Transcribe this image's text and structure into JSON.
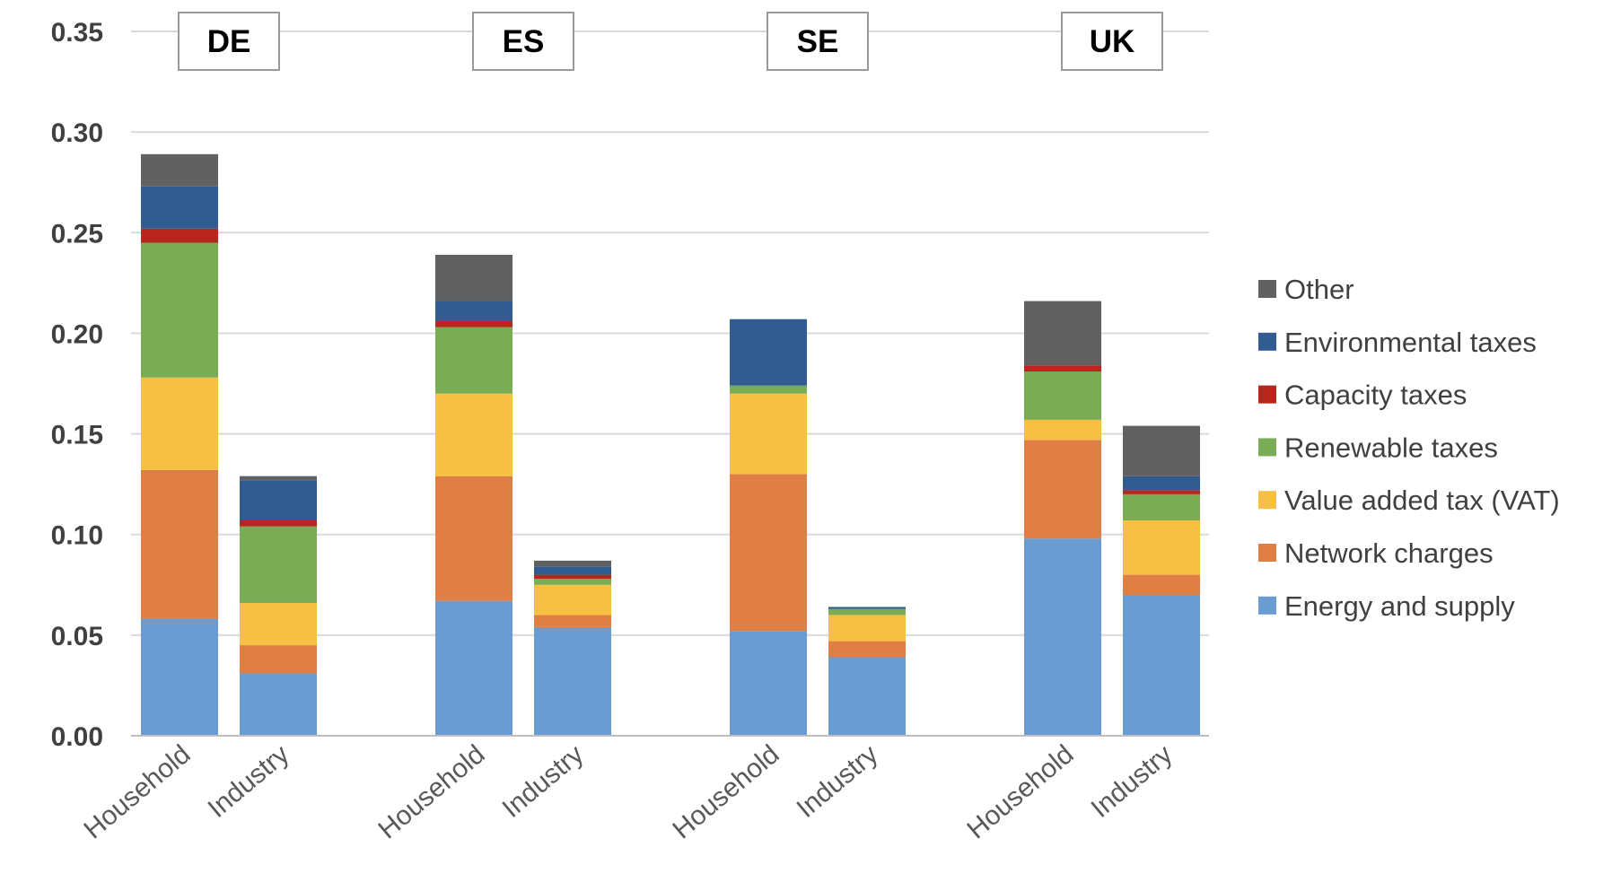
{
  "chart_data": {
    "type": "bar",
    "stacked": true,
    "groups": [
      "DE",
      "ES",
      "SE",
      "UK"
    ],
    "categories": [
      "Household",
      "Industry"
    ],
    "ylim": [
      0,
      0.35
    ],
    "yticks": [
      "0.00",
      "0.05",
      "0.10",
      "0.15",
      "0.20",
      "0.25",
      "0.30",
      "0.35"
    ],
    "grid": true,
    "legend_position": "right",
    "series": [
      {
        "name": "Energy and supply",
        "color": "#6A9BD1",
        "values": {
          "DE": [
            0.058,
            0.031
          ],
          "ES": [
            0.067,
            0.054
          ],
          "SE": [
            0.052,
            0.039
          ],
          "UK": [
            0.098,
            0.07
          ]
        }
      },
      {
        "name": "Network charges",
        "color": "#E07F45",
        "values": {
          "DE": [
            0.074,
            0.014
          ],
          "ES": [
            0.062,
            0.006
          ],
          "SE": [
            0.078,
            0.008
          ],
          "UK": [
            0.049,
            0.01
          ]
        }
      },
      {
        "name": "Value added tax (VAT)",
        "color": "#F6C143",
        "values": {
          "DE": [
            0.046,
            0.021
          ],
          "ES": [
            0.041,
            0.015
          ],
          "SE": [
            0.04,
            0.013
          ],
          "UK": [
            0.01,
            0.027
          ]
        }
      },
      {
        "name": "Renewable taxes",
        "color": "#7AAB55",
        "values": {
          "DE": [
            0.067,
            0.038
          ],
          "ES": [
            0.033,
            0.003
          ],
          "SE": [
            0.004,
            0.003
          ],
          "UK": [
            0.024,
            0.013
          ]
        }
      },
      {
        "name": "Capacity taxes",
        "color": "#B8261E",
        "values": {
          "DE": [
            0.007,
            0.003
          ],
          "ES": [
            0.003,
            0.002
          ],
          "SE": [
            0.0,
            0.0
          ],
          "UK": [
            0.003,
            0.002
          ]
        }
      },
      {
        "name": "Environmental taxes",
        "color": "#305C8F",
        "values": {
          "DE": [
            0.021,
            0.02
          ],
          "ES": [
            0.01,
            0.004
          ],
          "SE": [
            0.033,
            0.001
          ],
          "UK": [
            0.0,
            0.007
          ]
        }
      },
      {
        "name": "Other",
        "color": "#616161",
        "values": {
          "DE": [
            0.016,
            0.002
          ],
          "ES": [
            0.023,
            0.003
          ],
          "SE": [
            0.0,
            0.0
          ],
          "UK": [
            0.032,
            0.025
          ]
        }
      }
    ]
  }
}
